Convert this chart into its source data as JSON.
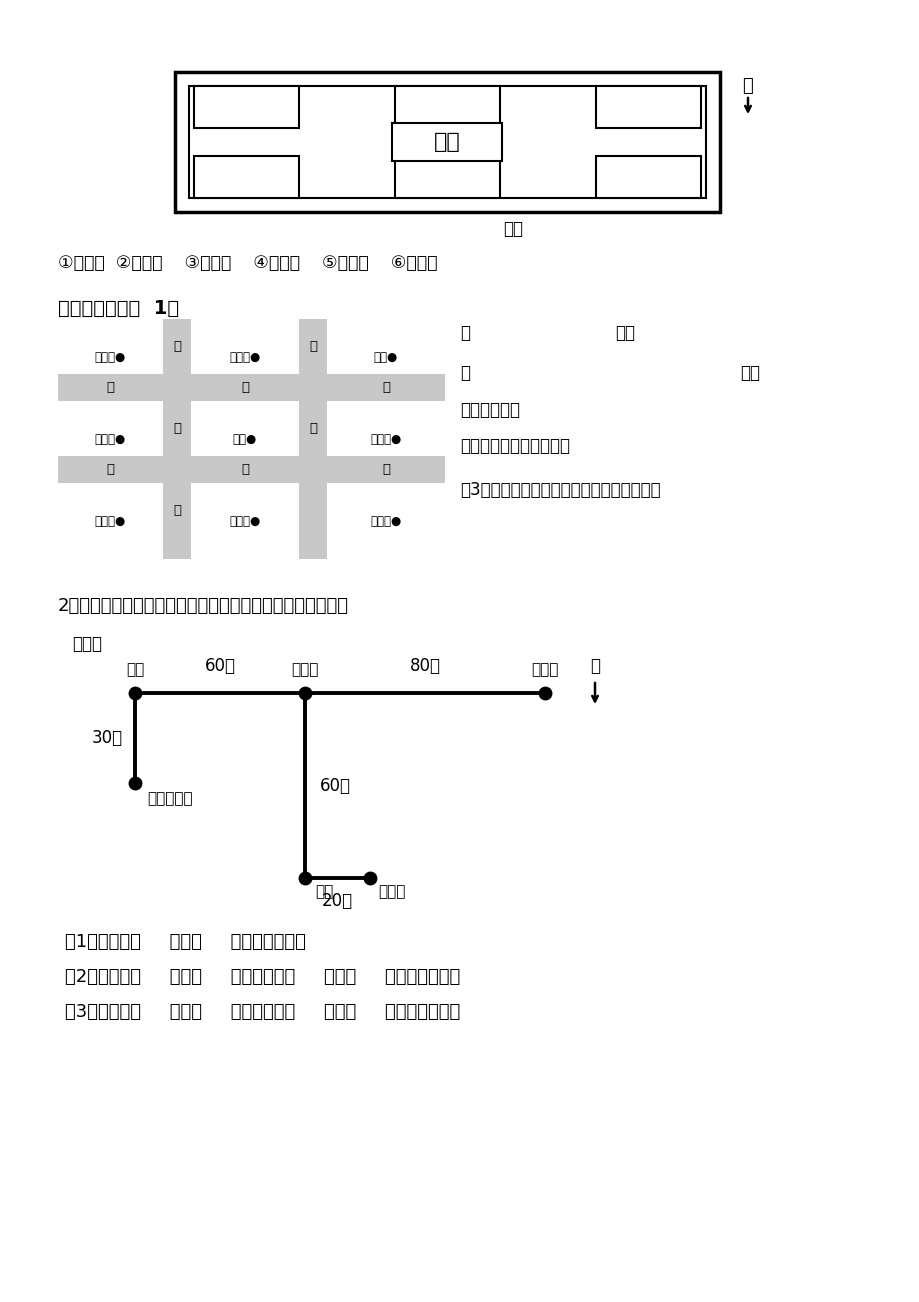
{
  "bg_color": "#ffffff",
  "labels_row1": "①环保屋  ②电脑屋    ③天文馆    ④航模馆    ⑤气象馆    ⑥生物馆",
  "section2_title": "2、三个小朋友都从家出发去看电影，请你根据下图填一填。",
  "map_legend": "图标：",
  "north_label": "北",
  "zhantingText": "展厅",
  "damenText": "大门",
  "sanTitle": "三、解决问题：  1、",
  "q1": "（1）奇奇向（     ）走（     ）米到电影院。",
  "q2": "（2）格格向（     ）走（     ）米，再向（     ）走（     ）米到电影院。",
  "q3": "（3）皮皮向（     ）走（     ）米，再向（     ）走（     ）米到电影院。",
  "node_youju_label": "邮局",
  "node_dianyingyuan_label": "电影院",
  "node_qiqi_label": "奇奇家",
  "node_pipijia_label": "图：皮皮家",
  "node_shudian_label": "书店",
  "node_gegejia_label": "格格家",
  "dist_youju_dianyingyuan": "60米",
  "dist_dianyingyuan_qiqi": "80米",
  "dist_youju_pipi": "30米",
  "dist_dianyingyuan_gege": "60米",
  "dist_shudian_gege": "20米",
  "right_q1_open": "（",
  "right_q1_close": "）、",
  "right_q2_open": "（",
  "right_q2_close": "）。",
  "right_q3": "），小吃店在",
  "right_q4": "）面，小川家在小林家的",
  "right_q5": "（3）请你说一说小川去邮局，可以怕么走？",
  "street_h_names": [
    [
      "和",
      "平",
      "路"
    ],
    [
      "北",
      "京",
      "路"
    ]
  ],
  "street_v_names_left": [
    "花",
    "园",
    "街"
  ],
  "street_v_names_right": [
    "新",
    "街"
  ],
  "building_labels": [
    "电视台•",
    "小川家•",
    "电影院•",
    "小林家•",
    "赵事•",
    "图书馆•",
    "邮局•",
    "小吃店•",
    "音像店•"
  ]
}
